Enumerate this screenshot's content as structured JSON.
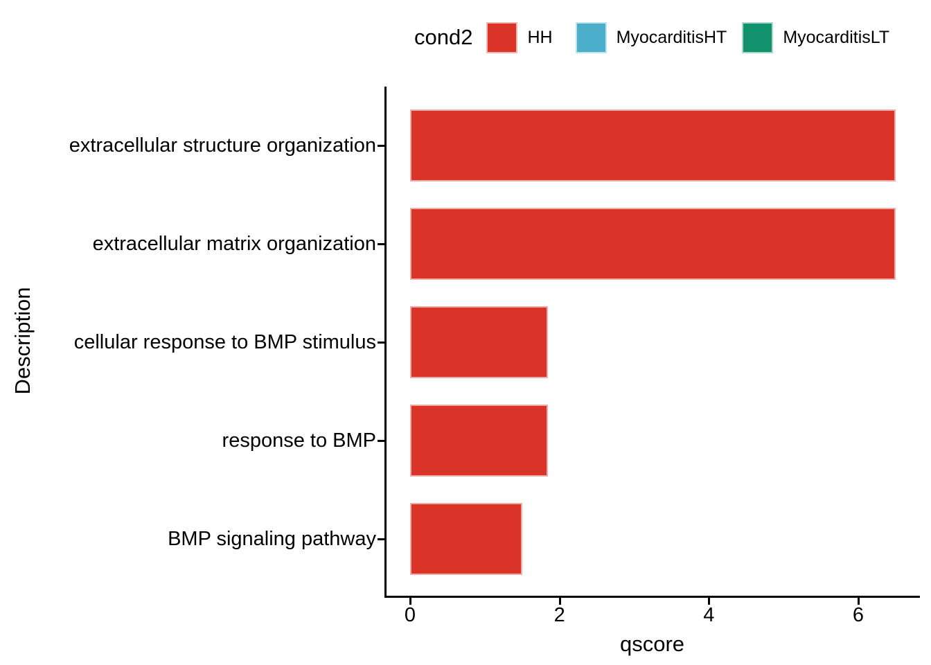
{
  "chart_data": {
    "type": "bar",
    "orientation": "horizontal",
    "title": "",
    "xlabel": "qscore",
    "ylabel": "Description",
    "categories": [
      "extracellular structure organization",
      "extracellular matrix organization",
      "cellular response to BMP stimulus",
      "response to BMP",
      "BMP signaling pathway"
    ],
    "series": [
      {
        "name": "HH",
        "color": "#DA3327",
        "values": [
          6.5,
          6.5,
          1.85,
          1.85,
          1.5
        ]
      }
    ],
    "xticks": [
      0,
      2,
      4,
      6
    ],
    "xlim": [
      0,
      6.85
    ],
    "grid": false,
    "legend_position": "top",
    "background_color": "#FFFFFF",
    "axis_color": "#000000"
  },
  "legend": {
    "title": "cond2",
    "entries": [
      {
        "label": "HH",
        "color": "#DA3327"
      },
      {
        "label": "MyocarditisHT",
        "color": "#4BAECB"
      },
      {
        "label": "MyocarditisLT",
        "color": "#12916D"
      }
    ]
  }
}
